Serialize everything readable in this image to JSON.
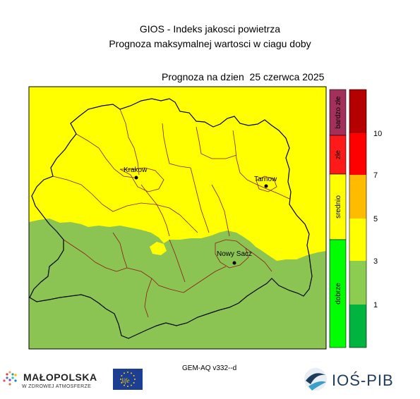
{
  "titles": {
    "line1": "GIOS - Indeks jakosci powietrza",
    "line2": "Prognoza maksymalnej wartosci w ciagu doby"
  },
  "forecast": {
    "label": "Prognoza na dzien",
    "date": "25 czerwca 2025"
  },
  "places": [
    {
      "name": "Krakow"
    },
    {
      "name": "Tarnow"
    },
    {
      "name": "Nowy Sacz"
    }
  ],
  "legend": {
    "categories": [
      {
        "label": "bardzo złe",
        "color": "#a3305a"
      },
      {
        "label": "złe",
        "color": "#ff1a1a"
      },
      {
        "label": "srednio",
        "color": "#ffff00"
      },
      {
        "label": "dobrze",
        "color": "#00ff00"
      }
    ],
    "scale_colors": [
      "#b40000",
      "#ff0000",
      "#ff2a00",
      "#ffbb00",
      "#ffff00",
      "#8ccc50",
      "#00b440"
    ],
    "ticks": [
      "10",
      "7",
      "5",
      "3",
      "1"
    ]
  },
  "map_colors": {
    "moderate": "#ffff00",
    "good": "#8cc453",
    "powiat_border": "#8b1a1a",
    "region_border": "#000000"
  },
  "model": "GEM-AQ v332--d",
  "logos": {
    "malopolska_name": "MAŁOPOLSKA",
    "malopolska_tagline": "W ZDROWEJ ATMOSFERZE",
    "eu_life": "life",
    "ios_name": "IOŚ-PIB"
  }
}
